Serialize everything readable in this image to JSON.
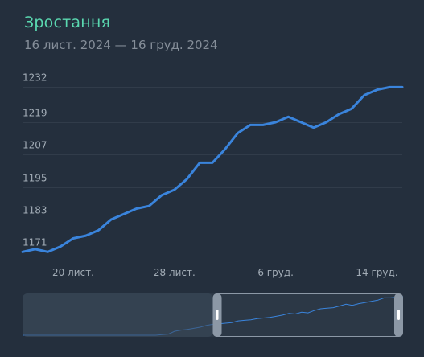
{
  "header": {
    "title": "Зростання",
    "subtitle": "16 лист. 2024 — 16 груд. 2024"
  },
  "colors": {
    "background": "#242f3d",
    "title": "#5ad8b0",
    "line": "#3a84dc",
    "grid": "#313c4a",
    "tick_text": "#a2acb6"
  },
  "chart_data": {
    "type": "line",
    "title": "Зростання",
    "subtitle": "16 лист. 2024 — 16 груд. 2024",
    "xlabel": "",
    "ylabel": "",
    "x_start": "16 лист. 2024",
    "x_end": "16 груд. 2024",
    "yticks": [
      1171,
      1183,
      1195,
      1207,
      1219,
      1232
    ],
    "ylim": [
      1169,
      1233
    ],
    "xticks": [
      {
        "label": "20 лист.",
        "index": 4
      },
      {
        "label": "28 лист.",
        "index": 12
      },
      {
        "label": "6 груд.",
        "index": 20
      },
      {
        "label": "14 груд.",
        "index": 28
      }
    ],
    "grid": true,
    "series": [
      {
        "values": [
          1171,
          1172,
          1171,
          1173,
          1176,
          1177,
          1179,
          1183,
          1185,
          1187,
          1188,
          1192,
          1194,
          1198,
          1204,
          1204,
          1209,
          1215,
          1218,
          1218,
          1219,
          1221,
          1219,
          1217,
          1219,
          1222,
          1224,
          1229,
          1231,
          1232,
          1232
        ]
      }
    ],
    "navigator": {
      "series": [
        1166,
        1166,
        1166,
        1166,
        1166,
        1166,
        1166,
        1166,
        1166,
        1166,
        1166,
        1166,
        1166,
        1166,
        1166,
        1166,
        1166,
        1166,
        1166,
        1166,
        1166,
        1166,
        1167,
        1168,
        1173,
        1175,
        1176,
        1178,
        1180,
        1183,
        1185,
        1186,
        1187,
        1188,
        1191,
        1192,
        1193,
        1195,
        1196,
        1197,
        1199,
        1201,
        1204,
        1203,
        1206,
        1205,
        1209,
        1212,
        1213,
        1214,
        1217,
        1220,
        1218,
        1221,
        1223,
        1225,
        1227,
        1231,
        1231,
        1232,
        1233
      ],
      "selected_from": 0.5,
      "selected_to": 1.0
    }
  }
}
